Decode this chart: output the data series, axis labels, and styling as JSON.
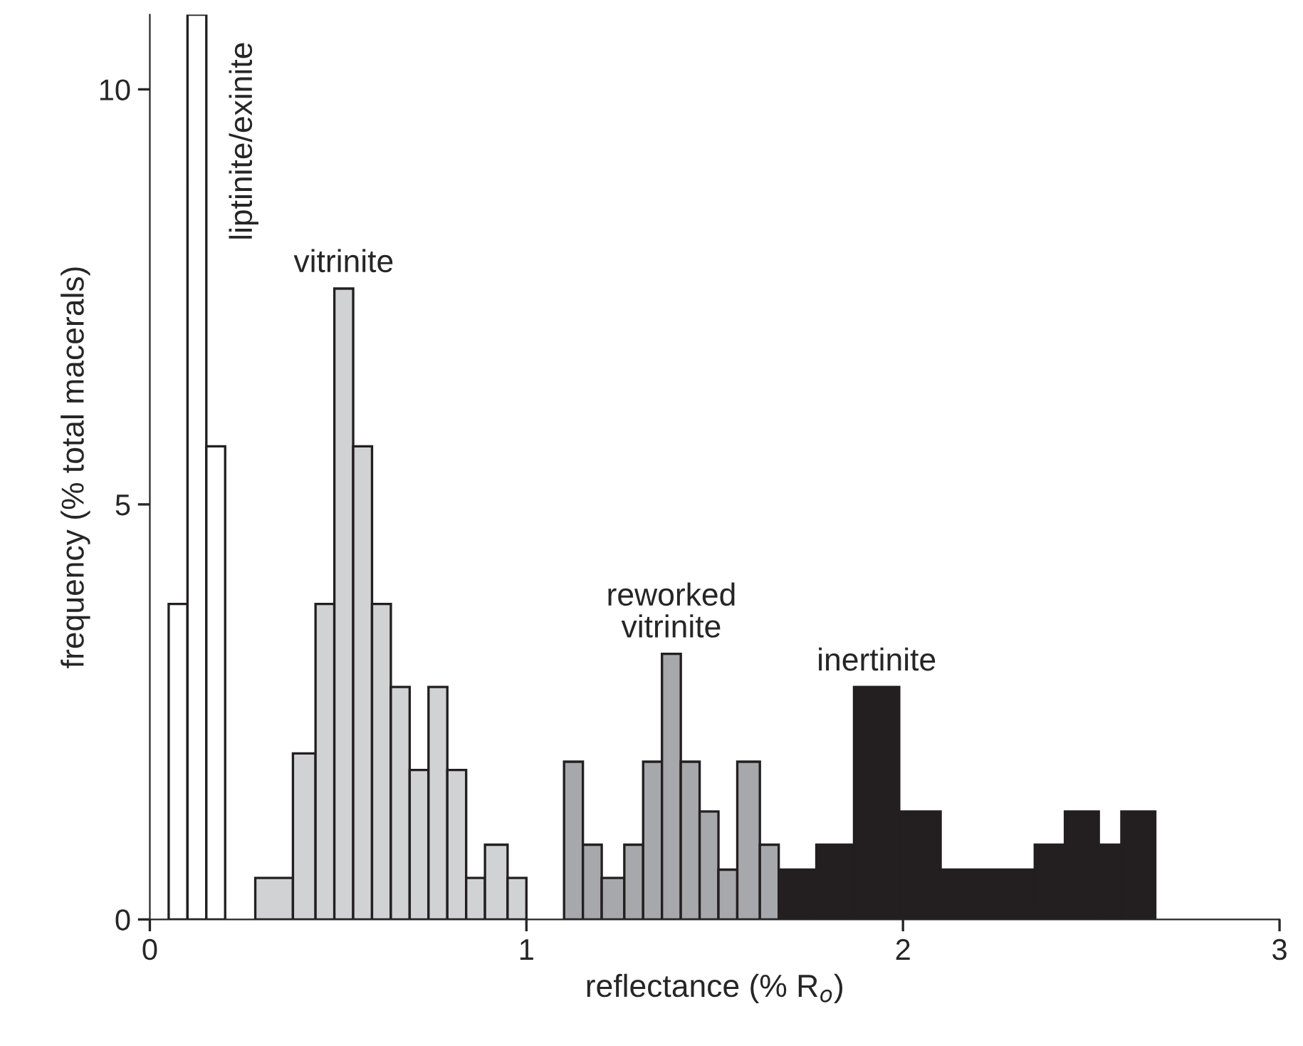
{
  "chart_data": {
    "type": "histogram",
    "xlabel": "reflectance (% R$_{o}$)",
    "ylabel": "frequency (% total macerals)",
    "xlim": [
      0,
      3
    ],
    "xticks": [
      0,
      1,
      2,
      3
    ],
    "ylim": [
      0,
      10.9
    ],
    "yticks": [
      0,
      5,
      10
    ],
    "grid": false,
    "legend": false,
    "bins": [
      0.05,
      0.1,
      0.15,
      0.2,
      0.28,
      0.38,
      0.44,
      0.49,
      0.54,
      0.59,
      0.64,
      0.69,
      0.74,
      0.79,
      0.84,
      0.89,
      0.95,
      1.0,
      1.1,
      1.15,
      1.2,
      1.26,
      1.31,
      1.36,
      1.41,
      1.46,
      1.51,
      1.56,
      1.62,
      1.67,
      1.77,
      1.87,
      1.99,
      2.1,
      2.35,
      2.43,
      2.52,
      2.58,
      2.67
    ],
    "series": [
      {
        "name": "liptinite/exinite",
        "color": "#ffffff",
        "values": [
          3.8,
          10.9,
          5.7,
          null,
          null,
          null,
          null,
          null,
          null,
          null,
          null,
          null,
          null,
          null,
          null,
          null,
          null,
          null,
          null,
          null,
          null,
          null,
          null,
          null,
          null,
          null,
          null,
          null,
          null,
          null,
          null,
          null,
          null,
          null,
          null,
          null,
          null,
          null
        ]
      },
      {
        "name": "vitrinite",
        "color": "#d1d2d4",
        "values": [
          null,
          null,
          null,
          null,
          0.5,
          2.0,
          3.8,
          7.6,
          5.7,
          3.8,
          2.8,
          1.8,
          2.8,
          1.8,
          0.5,
          0.9,
          0.5,
          null,
          null,
          null,
          null,
          null,
          null,
          null,
          null,
          null,
          null,
          null,
          null,
          null,
          null,
          null,
          null,
          null,
          null,
          null,
          null,
          null
        ]
      },
      {
        "name": "reworked\nvitrinite",
        "color": "#a7a8ab",
        "values": [
          null,
          null,
          null,
          null,
          null,
          null,
          null,
          null,
          null,
          null,
          null,
          null,
          null,
          null,
          null,
          null,
          null,
          null,
          1.9,
          0.9,
          0.5,
          0.9,
          1.9,
          3.2,
          1.9,
          1.3,
          0.6,
          1.9,
          0.9,
          null,
          null,
          null,
          null,
          null,
          null,
          null,
          null,
          null
        ]
      },
      {
        "name": "inertinite",
        "color": "#231f20",
        "values": [
          null,
          null,
          null,
          null,
          null,
          null,
          null,
          null,
          null,
          null,
          null,
          null,
          null,
          null,
          null,
          null,
          null,
          null,
          null,
          null,
          null,
          null,
          null,
          null,
          null,
          null,
          null,
          null,
          null,
          0.6,
          0.9,
          2.8,
          1.3,
          0.6,
          0.9,
          1.3,
          0.9,
          1.3
        ]
      }
    ]
  }
}
